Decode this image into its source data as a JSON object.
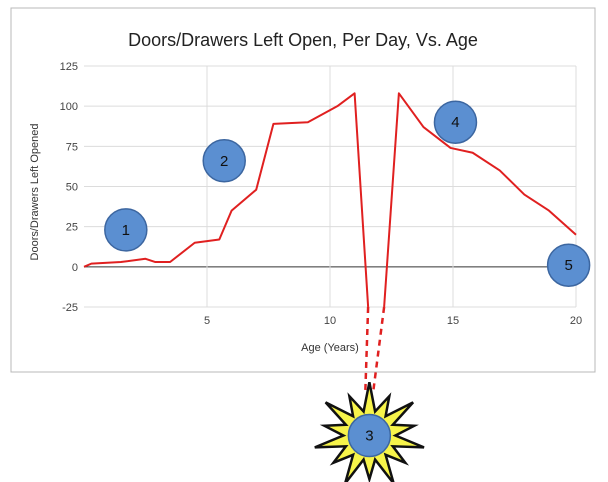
{
  "chart_data": {
    "type": "line",
    "title": "Doors/Drawers Left Open, Per Day, Vs. Age",
    "xlabel": "Age (Years)",
    "ylabel": "Doors/Drawers Left Opened",
    "xlim": [
      0,
      20
    ],
    "ylim": [
      -25,
      125
    ],
    "x_ticks": [
      5,
      10,
      15,
      20
    ],
    "y_ticks": [
      -25,
      0,
      25,
      50,
      75,
      100,
      125
    ],
    "grid": true,
    "legend": "none",
    "series": [
      {
        "color": "#e02020",
        "x": [
          0,
          0.3,
          1.5,
          2.5,
          2.9,
          3.5,
          4.5,
          5.5,
          6,
          7,
          7.7,
          9.1,
          10.3,
          11,
          11.55
        ],
        "y": [
          0,
          2,
          3,
          5,
          3,
          3,
          15,
          17,
          35,
          48,
          89,
          90,
          100,
          108,
          -25
        ]
      },
      {
        "color": "#e02020",
        "x": [
          12.2,
          12.8,
          13.8,
          14.9,
          15.8,
          16.9,
          17.9,
          18.9,
          20
        ],
        "y": [
          -25,
          108,
          87,
          74,
          71,
          60,
          45,
          35,
          20
        ]
      }
    ],
    "annotations": [
      {
        "label": "1",
        "x": 1.7,
        "y": 23
      },
      {
        "label": "2",
        "x": 5.7,
        "y": 66
      },
      {
        "label": "3",
        "x": 11.6,
        "y": -105
      },
      {
        "label": "4",
        "x": 15.1,
        "y": 90
      },
      {
        "label": "5",
        "x": 19.7,
        "y": 1
      }
    ]
  }
}
